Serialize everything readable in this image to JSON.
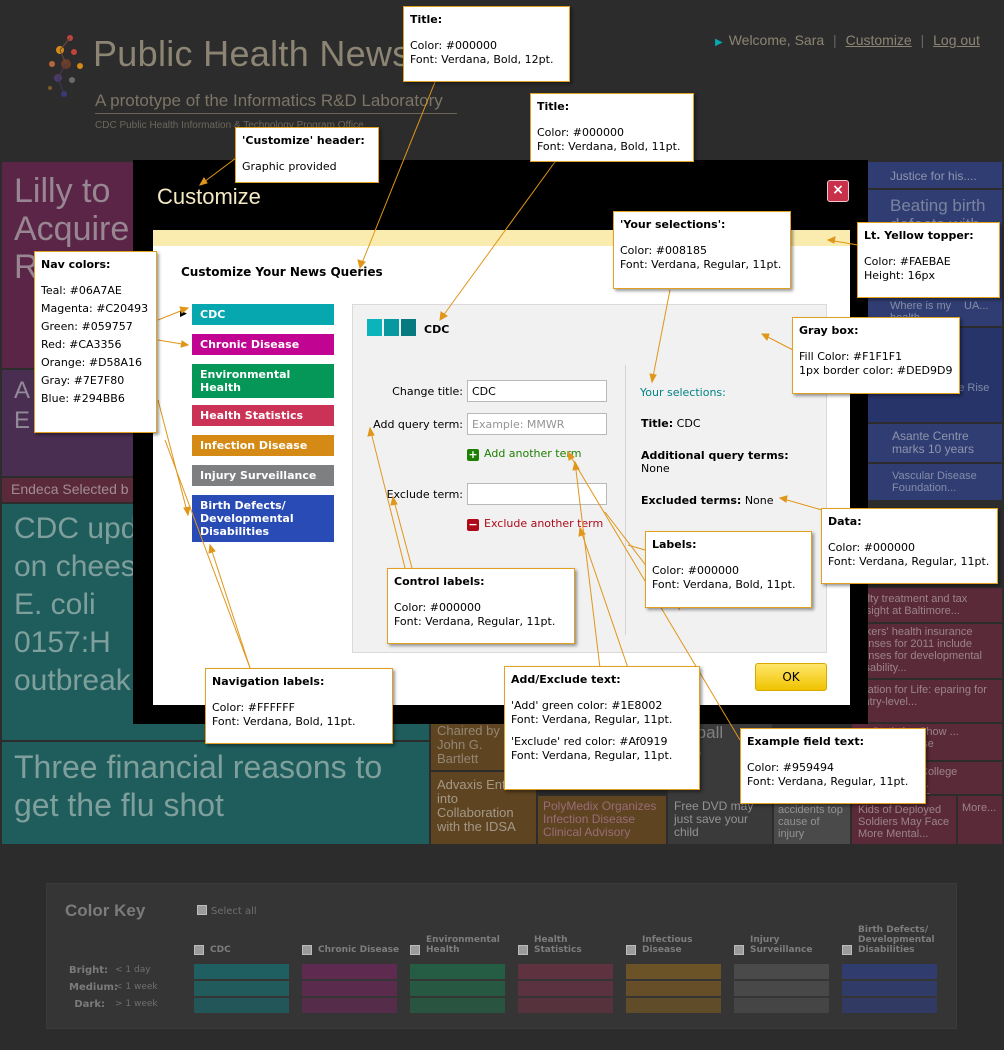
{
  "header": {
    "site_title": "Public Health News",
    "subtitle": "A prototype of the Informatics R&D Laboratory",
    "office": "CDC Public Health Information & Technology Program Office",
    "welcome": "Welcome, Sara",
    "separator": "|",
    "customize_link": "Customize",
    "logout_link": "Log out"
  },
  "background_tiles": {
    "lilly": "Lilly to Acquire R",
    "tile_a": "A E",
    "endeca": "Endeca Selected b",
    "cdc_update": "CDC upd on chees E. coli 0157:H outbreak",
    "financial": "Three financial reasons to get the flu shot",
    "justice": "Justice for his....",
    "beating": "Beating birth defects with",
    "where": "Where is my health ...",
    "ua": "UA...",
    "citizens": "citizens on the Rise",
    "asante": "Asante Centre marks 10 years",
    "vascular": "Vascular Disease Foundation...",
    "faculty": "culty treatment and tax ersight at Baltimore...",
    "workers": "orkers' health insurance penses for 2011 include penses for developmental disability...",
    "education": "ucation for Life: eparing for Entry-level...",
    "statistics": "Statistics Show ... Deaths ... se",
    "college": "College ... er US...",
    "chaired": "Chaired by John G. Bartlett",
    "advaxis": "Advaxis Enters into Collaboration with the IDSA",
    "polymedix": "PolyMedix Organizes Infection Disease Clinical Advisory",
    "dvd": "Free DVD may just save your child",
    "ketball": "ketball ries",
    "accidents": "accidents top cause of injury",
    "kids": "Kids of Deployed Soldiers May Face More Mental...",
    "more": "More..."
  },
  "modal": {
    "title": "Customize",
    "close_glyph": "×",
    "queries_title": "Customize Your News Queries",
    "nav_pointer": "▶",
    "nav": [
      {
        "label": "CDC",
        "color": "#06A7AE"
      },
      {
        "label": "Chronic Disease",
        "color": "#C20493"
      },
      {
        "label": "Environmental Health",
        "color": "#059757"
      },
      {
        "label": "Health Statistics",
        "color": "#CA3356"
      },
      {
        "label": "Infection Disease",
        "color": "#D58A16"
      },
      {
        "label": "Injury Surveillance",
        "color": "#7E7F80"
      },
      {
        "label": "Birth Defects/ Developmental Disabilities",
        "color": "#294BB6"
      }
    ],
    "box": {
      "title": "CDC",
      "change_title_label": "Change title:",
      "change_title_value": "CDC",
      "add_query_label": "Add query term:",
      "add_query_placeholder": "Example: MMWR",
      "add_another": "Add another term",
      "exclude_label": "Exclude term:",
      "exclude_value": "",
      "exclude_another": "Exclude another term",
      "your_selections": "Your selections:",
      "sel_title_label": "Title:",
      "sel_title_value": "CDC",
      "additional_label": "Additional query terms:",
      "additional_value": "None",
      "excluded_label": "Excluded terms:",
      "excluded_value": "None"
    },
    "ok": "OK"
  },
  "annotations": {
    "title1": {
      "head": "Title:",
      "l1": "Color: #000000",
      "l2": "Font: Verdana, Bold, 12pt."
    },
    "title2": {
      "head": "Title:",
      "l1": "Color: #000000",
      "l2": "Font: Verdana, Bold, 11pt."
    },
    "customize_header": {
      "head": "'Customize' header:",
      "l1": "Graphic provided"
    },
    "your_selections": {
      "head": "'Your selections':",
      "l1": "Color: #008185",
      "l2": "Font: Verdana, Regular, 11pt."
    },
    "yellow_topper": {
      "head": "Lt. Yellow topper:",
      "l1": "Color: #FAEBAE",
      "l2": "Height: 16px"
    },
    "nav_colors": {
      "head": "Nav colors:",
      "lines": [
        "Teal: #06A7AE",
        "Magenta: #C20493",
        "Green: #059757",
        "Red: #CA3356",
        "Orange: #D58A16",
        "Gray: #7E7F80",
        "Blue: #294BB6"
      ]
    },
    "gray_box": {
      "head": "Gray box:",
      "l1": "Fill Color: #F1F1F1",
      "l2": "1px border color: #DED9D9"
    },
    "data": {
      "head": "Data:",
      "l1": "Color: #000000",
      "l2": "Font: Verdana, Regular, 11pt."
    },
    "labels": {
      "head": "Labels:",
      "l1": "Color: #000000",
      "l2": "Font: Verdana, Bold, 11pt."
    },
    "control_labels": {
      "head": "Control labels:",
      "l1": "Color: #000000",
      "l2": "Font: Verdana, Regular, 11pt."
    },
    "navigation_labels": {
      "head": "Navigation labels:",
      "l1": "Color: #FFFFFF",
      "l2": "Font: Verdana, Bold, 11pt."
    },
    "add_exclude": {
      "head": "Add/Exclude text:",
      "l1": "'Add' green color: #1E8002",
      "l2": "Font: Verdana, Regular, 11pt.",
      "l3": "'Exclude' red color: #Af0919",
      "l4": "Font: Verdana, Regular, 11pt."
    },
    "example_field": {
      "head": "Example field text:",
      "l1": "Color: #959494",
      "l2": "Font: Verdana, Regular, 11pt."
    }
  },
  "color_key": {
    "title": "Color Key",
    "select_all": "Select all",
    "rows": [
      {
        "label": "Bright:",
        "sub": "< 1 day"
      },
      {
        "label": "Medium:",
        "sub": "< 1 week"
      },
      {
        "label": "Dark:",
        "sub": "> 1 week"
      }
    ],
    "columns": [
      {
        "label": "CDC",
        "color": "#1f5f61"
      },
      {
        "label": "Chronic Disease",
        "color": "#5e2a4f"
      },
      {
        "label": "Environmental Health",
        "color": "#255c44"
      },
      {
        "label": "Health Statistics",
        "color": "#5f3240"
      },
      {
        "label": "Infectious Disease",
        "color": "#6b5227"
      },
      {
        "label": "Injury Surveillance",
        "color": "#4a4a4a"
      },
      {
        "label": "Birth Defects/ Developmental Disabilities",
        "color": "#303c6e"
      }
    ]
  }
}
